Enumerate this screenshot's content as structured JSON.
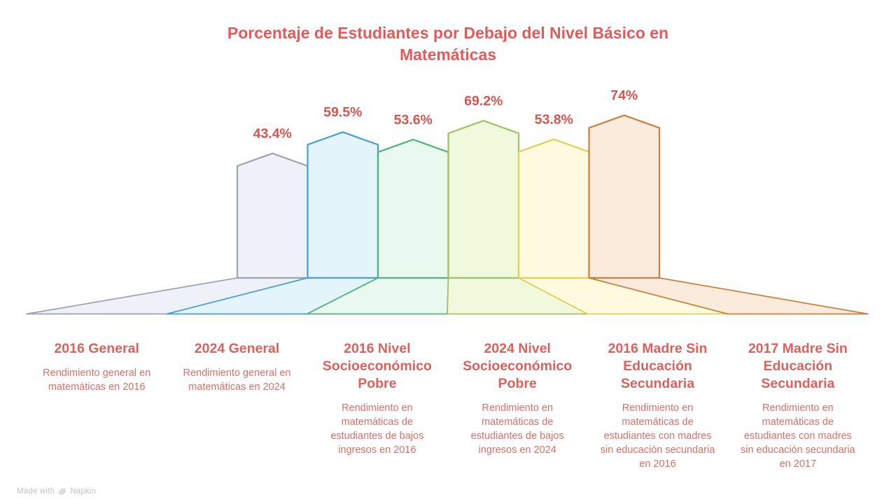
{
  "watermark": {
    "made_with": "Made with",
    "brand": "Napkin"
  },
  "colors": {
    "background": "#FFFFFF",
    "title": "#E25A5A",
    "value_label": "#D6564F",
    "category_title": "#D9625D",
    "category_description": "#DB6F69",
    "watermark": "#C3C3C8"
  },
  "chart_data": {
    "type": "bar",
    "style": "pentagon-towers-on-perspective-fan-floor",
    "title": "Porcentaje de Estudiantes por Debajo del Nivel Básico en Matemáticas",
    "unit": "%",
    "ylim": [
      0,
      100
    ],
    "grid": false,
    "legend": false,
    "categories": [
      "2016 General",
      "2024 General",
      "2016 Nivel Socioeconómico Pobre",
      "2024 Nivel Socioeconómico Pobre",
      "2016 Madre Sin Educación Secundaria",
      "2017 Madre Sin Educación Secundaria"
    ],
    "values": [
      43.4,
      59.5,
      53.6,
      69.2,
      53.8,
      74
    ],
    "value_labels": [
      "43.4%",
      "59.5%",
      "53.6%",
      "69.2%",
      "53.8%",
      "74%"
    ],
    "descriptions": [
      "Rendimiento general en matemáticas en 2016",
      "Rendimiento general en matemáticas en 2024",
      "Rendimiento en matemáticas de estudiantes de bajos ingresos en 2016",
      "Rendimiento en matemáticas de estudiantes de bajos ingresos en 2024",
      "Rendimiento en matemáticas de estudiantes con madres sin educación secundaria en 2016",
      "Rendimiento en matemáticas de estudiantes con madres sin educación secundaria en 2017"
    ],
    "series_colors": [
      {
        "stroke": "#9CA3AF",
        "fill": "#EEF1F8"
      },
      {
        "stroke": "#48A2CE",
        "fill": "#E4F4FB"
      },
      {
        "stroke": "#50B27D",
        "fill": "#E9F9F0"
      },
      {
        "stroke": "#A2C065",
        "fill": "#F1F9DD"
      },
      {
        "stroke": "#E0D14F",
        "fill": "#FDFAE0"
      },
      {
        "stroke": "#C8813E",
        "fill": "#FAEBDC"
      }
    ]
  }
}
